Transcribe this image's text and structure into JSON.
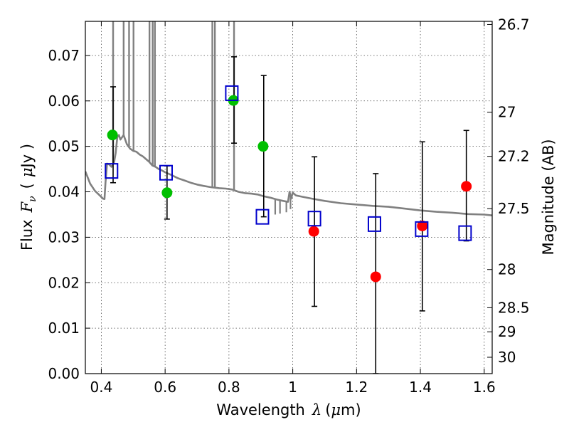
{
  "chart_data": {
    "type": "scatter",
    "xlabel": "Wavelength",
    "xlabel_symbol": "λ",
    "xlabel_unit_open": "(",
    "xlabel_unit_mu": "μ",
    "xlabel_unit_rest": "m)",
    "ylabel_prefix": "Flux",
    "ylabel_symbol": "F",
    "ylabel_subscript": "ν",
    "ylabel_unit_open": "(",
    "ylabel_unit_mu": "μ",
    "ylabel_unit_rest": "Jy )",
    "y2label": "Magnitude (AB)",
    "xlim": [
      0.35,
      1.625
    ],
    "ylim": [
      0.0,
      0.0775
    ],
    "grid": true,
    "x_ticks": [
      {
        "value": 0.4,
        "label": "0.4"
      },
      {
        "value": 0.6,
        "label": "0.6"
      },
      {
        "value": 0.8,
        "label": "0.8"
      },
      {
        "value": 1.0,
        "label": "1"
      },
      {
        "value": 1.2,
        "label": "1.2"
      },
      {
        "value": 1.4,
        "label": "1.4"
      },
      {
        "value": 1.6,
        "label": "1.6"
      }
    ],
    "y_ticks": [
      {
        "value": 0.0,
        "label": "0.00"
      },
      {
        "value": 0.01,
        "label": "0.01"
      },
      {
        "value": 0.02,
        "label": "0.02"
      },
      {
        "value": 0.03,
        "label": "0.03"
      },
      {
        "value": 0.04,
        "label": "0.04"
      },
      {
        "value": 0.05,
        "label": "0.05"
      },
      {
        "value": 0.06,
        "label": "0.06"
      },
      {
        "value": 0.07,
        "label": "0.07"
      }
    ],
    "y2_ticks": [
      {
        "flux": 0.0768,
        "label": "26.7"
      },
      {
        "flux": 0.0575,
        "label": "27"
      },
      {
        "flux": 0.0478,
        "label": "27.2"
      },
      {
        "flux": 0.0363,
        "label": "27.5"
      },
      {
        "flux": 0.0229,
        "label": "28"
      },
      {
        "flux": 0.0145,
        "label": "28.5"
      },
      {
        "flux": 0.0092,
        "label": "29"
      },
      {
        "flux": 0.0036,
        "label": "30"
      }
    ],
    "template_sed": {
      "color": "#808080",
      "points": [
        [
          0.35,
          0.0445
        ],
        [
          0.365,
          0.0418
        ],
        [
          0.38,
          0.0402
        ],
        [
          0.395,
          0.0392
        ],
        [
          0.405,
          0.0385
        ],
        [
          0.41,
          0.0384
        ],
        [
          0.413,
          0.042
        ],
        [
          0.418,
          0.0462
        ],
        [
          0.425,
          0.046
        ],
        [
          0.432,
          0.0455
        ],
        [
          0.44,
          0.0465
        ],
        [
          0.445,
          0.0485
        ],
        [
          0.45,
          0.052
        ],
        [
          0.455,
          0.0525
        ],
        [
          0.46,
          0.0515
        ],
        [
          0.47,
          0.0525
        ],
        [
          0.48,
          0.0505
        ],
        [
          0.49,
          0.0495
        ],
        [
          0.5,
          0.049
        ],
        [
          0.51,
          0.0488
        ],
        [
          0.52,
          0.0482
        ],
        [
          0.53,
          0.0478
        ],
        [
          0.54,
          0.0472
        ],
        [
          0.55,
          0.0466
        ],
        [
          0.56,
          0.0458
        ],
        [
          0.57,
          0.0455
        ],
        [
          0.58,
          0.045
        ],
        [
          0.59,
          0.0447
        ],
        [
          0.6,
          0.0443
        ],
        [
          0.62,
          0.0437
        ],
        [
          0.64,
          0.043
        ],
        [
          0.66,
          0.0425
        ],
        [
          0.68,
          0.042
        ],
        [
          0.7,
          0.0416
        ],
        [
          0.72,
          0.0413
        ],
        [
          0.745,
          0.041
        ],
        [
          0.77,
          0.0408
        ],
        [
          0.79,
          0.0407
        ],
        [
          0.81,
          0.0405
        ],
        [
          0.83,
          0.04
        ],
        [
          0.85,
          0.0397
        ],
        [
          0.87,
          0.0396
        ],
        [
          0.89,
          0.0394
        ],
        [
          0.91,
          0.039
        ],
        [
          0.93,
          0.0387
        ],
        [
          0.95,
          0.0383
        ],
        [
          0.97,
          0.038
        ],
        [
          0.985,
          0.0378
        ],
        [
          0.99,
          0.04
        ],
        [
          0.995,
          0.0385
        ],
        [
          1.0,
          0.0398
        ],
        [
          1.01,
          0.0392
        ],
        [
          1.03,
          0.0389
        ],
        [
          1.06,
          0.0385
        ],
        [
          1.1,
          0.038
        ],
        [
          1.15,
          0.0375
        ],
        [
          1.2,
          0.0372
        ],
        [
          1.25,
          0.0369
        ],
        [
          1.3,
          0.0367
        ],
        [
          1.35,
          0.0363
        ],
        [
          1.4,
          0.0359
        ],
        [
          1.45,
          0.0356
        ],
        [
          1.5,
          0.0354
        ],
        [
          1.55,
          0.0351
        ],
        [
          1.6,
          0.035
        ],
        [
          1.625,
          0.0348
        ]
      ],
      "emission_lines": [
        {
          "x": 0.437,
          "top": 0.0775
        },
        {
          "x": 0.47,
          "top": 0.0775
        },
        {
          "x": 0.487,
          "top": 0.0775
        },
        {
          "x": 0.501,
          "top": 0.0775
        },
        {
          "x": 0.551,
          "top": 0.0775
        },
        {
          "x": 0.561,
          "top": 0.0775
        },
        {
          "x": 0.568,
          "top": 0.0775
        },
        {
          "x": 0.748,
          "top": 0.0775
        },
        {
          "x": 0.756,
          "top": 0.0775
        },
        {
          "x": 0.816,
          "top": 0.0775
        }
      ],
      "absorption_lines": [
        {
          "x": 0.945,
          "bottom": 0.035
        },
        {
          "x": 0.96,
          "bottom": 0.0352
        },
        {
          "x": 0.98,
          "bottom": 0.0355
        },
        {
          "x": 0.993,
          "bottom": 0.0362
        }
      ]
    },
    "series": [
      {
        "marker": "circle",
        "color": "#00bf00",
        "points": [
          {
            "x": 0.435,
            "y": 0.0525
          },
          {
            "x": 0.606,
            "y": 0.0398
          },
          {
            "x": 0.814,
            "y": 0.0601
          },
          {
            "x": 0.907,
            "y": 0.05
          }
        ]
      },
      {
        "marker": "circle",
        "color": "#ff0000",
        "points": [
          {
            "x": 1.066,
            "y": 0.0313
          },
          {
            "x": 1.26,
            "y": 0.0213
          },
          {
            "x": 1.406,
            "y": 0.0325
          },
          {
            "x": 1.544,
            "y": 0.0412
          }
        ]
      },
      {
        "marker": "open-square",
        "color": "#0000cc",
        "points": [
          {
            "x": 0.432,
            "y": 0.0446
          },
          {
            "x": 0.603,
            "y": 0.0442
          },
          {
            "x": 0.809,
            "y": 0.0617
          },
          {
            "x": 0.905,
            "y": 0.0345
          },
          {
            "x": 1.068,
            "y": 0.0341
          },
          {
            "x": 1.256,
            "y": 0.0329
          },
          {
            "x": 1.404,
            "y": 0.0318
          },
          {
            "x": 1.54,
            "y": 0.0309
          }
        ]
      }
    ],
    "error_bars": [
      {
        "x": 0.437,
        "low": 0.042,
        "high": 0.0631
      },
      {
        "x": 0.606,
        "low": 0.034,
        "high": 0.0457
      },
      {
        "x": 0.816,
        "low": 0.0507,
        "high": 0.0697
      },
      {
        "x": 0.909,
        "low": 0.0345,
        "high": 0.0656
      },
      {
        "x": 1.068,
        "low": 0.0148,
        "high": 0.0477
      },
      {
        "x": 1.26,
        "low": 0.0,
        "high": 0.044
      },
      {
        "x": 1.406,
        "low": 0.0138,
        "high": 0.051
      },
      {
        "x": 1.544,
        "low": 0.0292,
        "high": 0.0535
      }
    ]
  }
}
